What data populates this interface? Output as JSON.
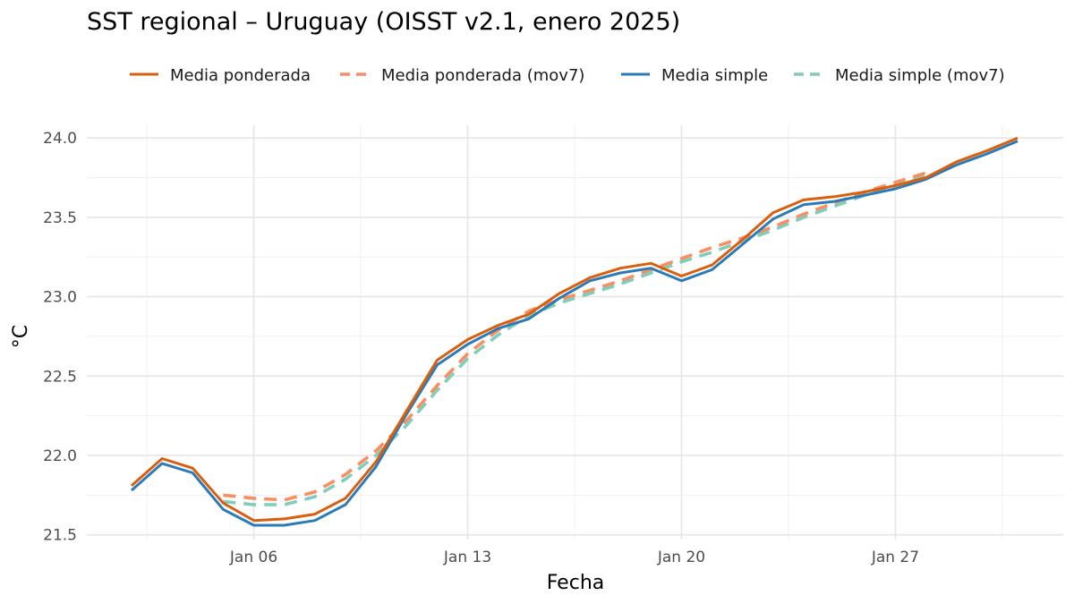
{
  "chart_data": {
    "type": "line",
    "title": "SST regional – Uruguay (OISST v2.1, enero 2025)",
    "xlabel": "Fecha",
    "ylabel": "°C",
    "ylim": [
      21.47,
      24.08
    ],
    "y_ticks": [
      21.5,
      22.0,
      22.5,
      23.0,
      23.5,
      24.0
    ],
    "y_tick_labels": [
      "21.5",
      "22.0",
      "22.5",
      "23.0",
      "23.5",
      "24.0"
    ],
    "x_ticks": [
      "2025-01-06",
      "2025-01-13",
      "2025-01-20",
      "2025-01-27"
    ],
    "x_tick_labels": [
      "Jan 06",
      "Jan 13",
      "Jan 20",
      "Jan 27"
    ],
    "grid": true,
    "legend_position": "top",
    "x": [
      "2025-01-02",
      "2025-01-03",
      "2025-01-04",
      "2025-01-05",
      "2025-01-06",
      "2025-01-07",
      "2025-01-08",
      "2025-01-09",
      "2025-01-10",
      "2025-01-11",
      "2025-01-12",
      "2025-01-13",
      "2025-01-14",
      "2025-01-15",
      "2025-01-16",
      "2025-01-17",
      "2025-01-18",
      "2025-01-19",
      "2025-01-20",
      "2025-01-21",
      "2025-01-22",
      "2025-01-23",
      "2025-01-24",
      "2025-01-25",
      "2025-01-26",
      "2025-01-27",
      "2025-01-28",
      "2025-01-29",
      "2025-01-30",
      "2025-01-31"
    ],
    "series": [
      {
        "name": "Media ponderada",
        "color": "#d95f0e",
        "dash": "solid",
        "values": [
          21.81,
          21.98,
          21.92,
          21.7,
          21.59,
          21.6,
          21.63,
          21.73,
          21.96,
          22.28,
          22.6,
          22.73,
          22.82,
          22.89,
          23.02,
          23.12,
          23.18,
          23.21,
          23.13,
          23.2,
          23.36,
          23.53,
          23.61,
          23.63,
          23.66,
          23.7,
          23.75,
          23.85,
          23.92,
          24.0
        ]
      },
      {
        "name": "Media ponderada (mov7)",
        "color": "#fc8d62",
        "dash": "dashed",
        "values": [
          null,
          null,
          null,
          21.75,
          21.73,
          21.72,
          21.77,
          21.88,
          22.03,
          22.22,
          22.44,
          22.64,
          22.79,
          22.91,
          22.98,
          23.04,
          23.1,
          23.17,
          23.24,
          23.31,
          23.37,
          23.44,
          23.52,
          23.59,
          23.66,
          23.72,
          23.78,
          null,
          null,
          null
        ]
      },
      {
        "name": "Media simple",
        "color": "#2c7bb6",
        "dash": "solid",
        "values": [
          21.78,
          21.95,
          21.89,
          21.66,
          21.56,
          21.56,
          21.59,
          21.69,
          21.93,
          22.26,
          22.57,
          22.7,
          22.8,
          22.86,
          22.99,
          23.1,
          23.15,
          23.18,
          23.1,
          23.17,
          23.33,
          23.49,
          23.58,
          23.6,
          23.64,
          23.68,
          23.74,
          23.83,
          23.9,
          23.98
        ]
      },
      {
        "name": "Media simple (mov7)",
        "color": "#7fcdbb",
        "dash": "dashed",
        "values": [
          null,
          null,
          null,
          21.71,
          21.69,
          21.69,
          21.74,
          21.85,
          22.0,
          22.19,
          22.41,
          22.61,
          22.76,
          22.88,
          22.96,
          23.02,
          23.08,
          23.15,
          23.22,
          23.28,
          23.35,
          23.42,
          23.5,
          23.57,
          23.64,
          23.7,
          23.76,
          null,
          null,
          null
        ]
      }
    ]
  }
}
